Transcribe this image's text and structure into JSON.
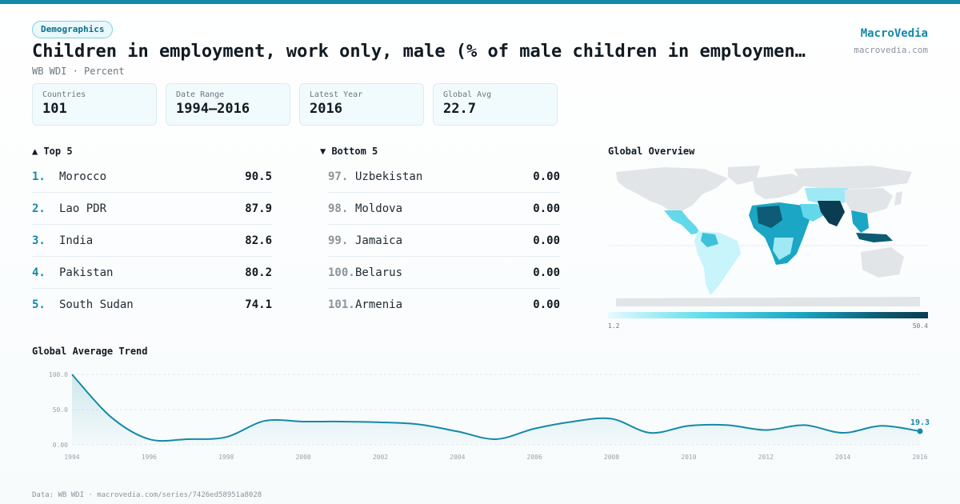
{
  "header": {
    "tag": "Demographics",
    "title": "Children in employment, work only, male (% of male children in employmen…",
    "subtitle": "WB WDI · Percent",
    "brand": "MacroVedia",
    "brand_url": "macrovedia.com"
  },
  "stats": [
    {
      "label": "Countries",
      "value": "101"
    },
    {
      "label": "Date Range",
      "value": "1994–2016"
    },
    {
      "label": "Latest Year",
      "value": "2016"
    },
    {
      "label": "Global Avg",
      "value": "22.7"
    }
  ],
  "top5": {
    "title": "▲ Top 5",
    "items": [
      {
        "rank": "1.",
        "name": "Morocco",
        "value": "90.5"
      },
      {
        "rank": "2.",
        "name": "Lao PDR",
        "value": "87.9"
      },
      {
        "rank": "3.",
        "name": "India",
        "value": "82.6"
      },
      {
        "rank": "4.",
        "name": "Pakistan",
        "value": "80.2"
      },
      {
        "rank": "5.",
        "name": "South Sudan",
        "value": "74.1"
      }
    ]
  },
  "bottom5": {
    "title": "▼ Bottom 5",
    "items": [
      {
        "rank": "97.",
        "name": "Uzbekistan",
        "value": "0.00"
      },
      {
        "rank": "98.",
        "name": "Moldova",
        "value": "0.00"
      },
      {
        "rank": "99.",
        "name": "Jamaica",
        "value": "0.00"
      },
      {
        "rank": "100.",
        "name": "Belarus",
        "value": "0.00"
      },
      {
        "rank": "101.",
        "name": "Armenia",
        "value": "0.00"
      }
    ]
  },
  "map": {
    "title": "Global Overview",
    "legend_min": "1.2",
    "legend_max": "50.4"
  },
  "trend_title": "Global Average Trend",
  "footer": "Data: WB WDI · macrovedia.com/series/7426ed58951a8028",
  "colors": {
    "accent": "#1489a8",
    "line": "#1489a8",
    "map_land": "#e1e5e8"
  },
  "chart_data": {
    "type": "area",
    "x": [
      1994,
      1995,
      1996,
      1997,
      1998,
      1999,
      2000,
      2001,
      2002,
      2003,
      2004,
      2005,
      2006,
      2007,
      2008,
      2009,
      2010,
      2011,
      2012,
      2013,
      2014,
      2015,
      2016
    ],
    "series": [
      {
        "values": [
          100,
          40,
          8,
          8,
          11,
          34,
          33,
          33,
          32,
          29,
          19,
          8,
          23,
          33,
          37,
          17,
          27,
          28,
          21,
          28,
          17,
          27,
          19.3
        ]
      }
    ],
    "x_ticks": [
      "1994",
      "1996",
      "1998",
      "2000",
      "2002",
      "2004",
      "2006",
      "2008",
      "2010",
      "2012",
      "2014",
      "2016"
    ],
    "y_ticks": [
      "0.00",
      "50.0",
      "100.0"
    ],
    "ylim": [
      0,
      100
    ],
    "last_label": "19.3",
    "grid": true
  }
}
